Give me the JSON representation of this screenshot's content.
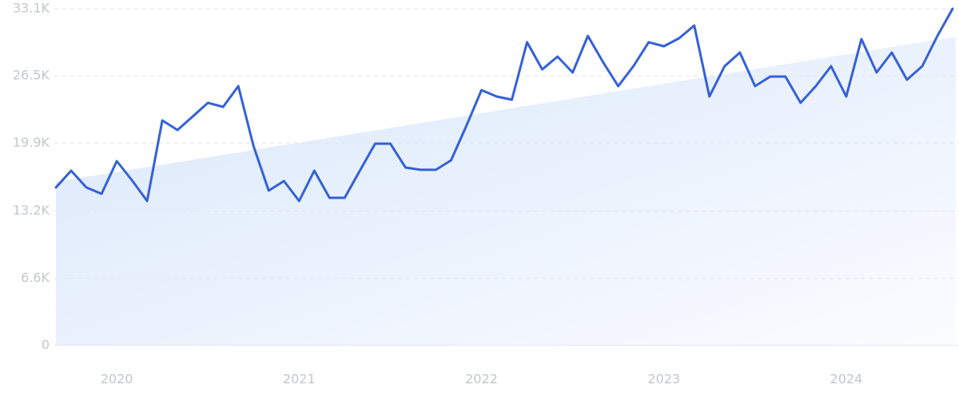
{
  "chart_data": {
    "type": "line",
    "categories": [
      null,
      null,
      null,
      null,
      null,
      null,
      null,
      null,
      null,
      null,
      null,
      null,
      null,
      null,
      null,
      null,
      null,
      null,
      null,
      null,
      null,
      null,
      null,
      null,
      null,
      null,
      null,
      null,
      null,
      null,
      null,
      null,
      null,
      null,
      null,
      null,
      null,
      null,
      null,
      null,
      null,
      null,
      null,
      null,
      null,
      null,
      null,
      null,
      null,
      null,
      null,
      null,
      null,
      null,
      null,
      null,
      null,
      null,
      null,
      null
    ],
    "values": [
      15530,
      17180,
      15530,
      14900,
      18120,
      16240,
      14200,
      22120,
      21180,
      22510,
      23850,
      23450,
      25490,
      19610,
      15220,
      16160,
      14200,
      17180,
      14510,
      14510,
      17180,
      19840,
      19840,
      17490,
      17260,
      17260,
      18200,
      21570,
      25100,
      24470,
      24160,
      29810,
      27140,
      28390,
      26830,
      30430,
      27850,
      25490,
      27450,
      29810,
      29410,
      30200,
      31450,
      24470,
      27450,
      28790,
      25490,
      26430,
      26430,
      23850,
      25490,
      27450,
      24470,
      30120,
      26830,
      28790,
      26120,
      27450,
      30430,
      33100
    ],
    "color": "#3461d9",
    "ylim": [
      0,
      33100
    ],
    "yticks": [
      0,
      {
        "value": 6600,
        "label": "6.6K"
      },
      {
        "value": 13200,
        "label": "13.2K"
      },
      {
        "value": 19900,
        "label": "19.9K"
      },
      {
        "value": 26500,
        "label": "26.5K"
      },
      {
        "value": 33100,
        "label": "33.1K"
      }
    ],
    "xticks": [
      {
        "value": 4,
        "label": "2020"
      },
      {
        "value": 16,
        "label": "2021"
      },
      {
        "value": 28,
        "label": "2022"
      },
      {
        "value": 40,
        "label": "2023"
      },
      {
        "value": 52,
        "label": "2024"
      }
    ],
    "grid": true
  }
}
